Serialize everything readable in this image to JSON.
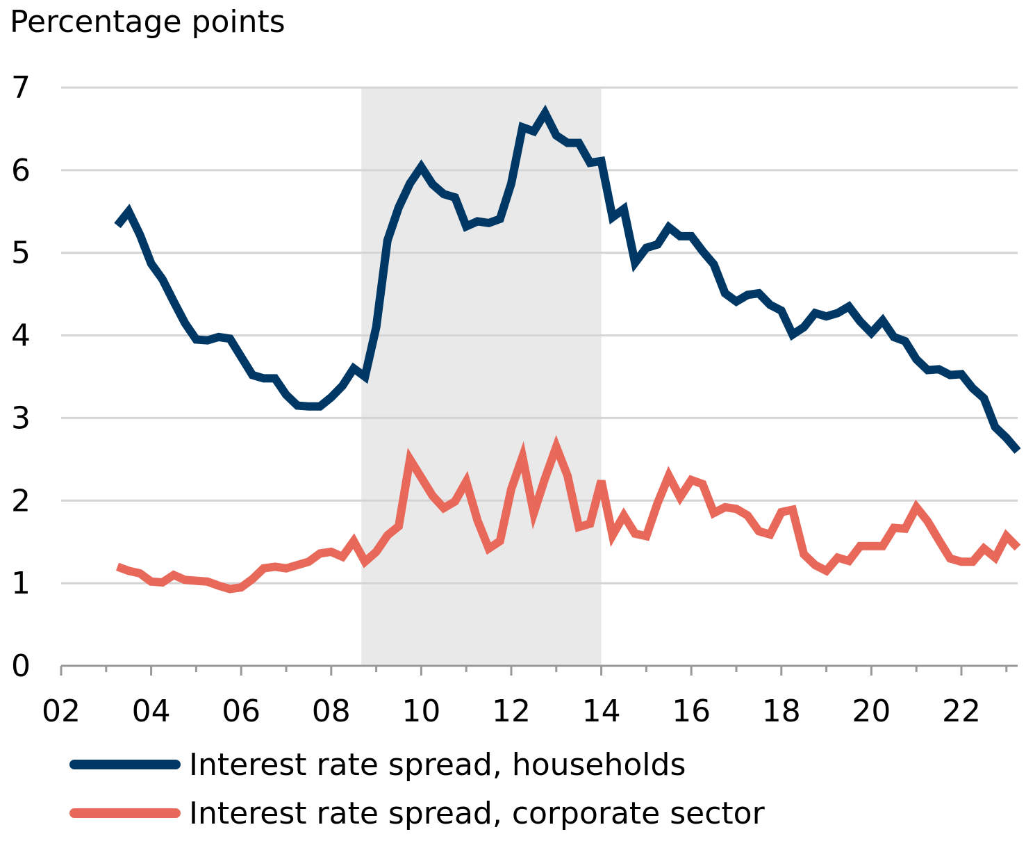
{
  "chart_data": {
    "type": "line",
    "ylabel": "Percentage points",
    "ylim": [
      0,
      7
    ],
    "yticks": [
      "0",
      "1",
      "2",
      "3",
      "4",
      "5",
      "6",
      "7"
    ],
    "xlim": [
      2002,
      2023.25
    ],
    "xticks": [
      {
        "v": 2002,
        "label": "02"
      },
      {
        "v": 2004,
        "label": "04"
      },
      {
        "v": 2006,
        "label": "06"
      },
      {
        "v": 2008,
        "label": "08"
      },
      {
        "v": 2010,
        "label": "10"
      },
      {
        "v": 2012,
        "label": "12"
      },
      {
        "v": 2014,
        "label": "14"
      },
      {
        "v": 2016,
        "label": "16"
      },
      {
        "v": 2018,
        "label": "18"
      },
      {
        "v": 2020,
        "label": "20"
      },
      {
        "v": 2022,
        "label": "22"
      }
    ],
    "shaded_region": [
      2008.67,
      2014.0
    ],
    "grid": true,
    "legend_position": "bottom",
    "series": [
      {
        "name": "Interest rate spread, households",
        "color": "#003865",
        "points": [
          [
            2003.25,
            5.33
          ],
          [
            2003.5,
            5.5
          ],
          [
            2003.75,
            5.22
          ],
          [
            2004.0,
            4.87
          ],
          [
            2004.25,
            4.68
          ],
          [
            2004.5,
            4.41
          ],
          [
            2004.75,
            4.15
          ],
          [
            2005.0,
            3.95
          ],
          [
            2005.25,
            3.94
          ],
          [
            2005.5,
            3.98
          ],
          [
            2005.75,
            3.96
          ],
          [
            2006.0,
            3.74
          ],
          [
            2006.25,
            3.52
          ],
          [
            2006.5,
            3.48
          ],
          [
            2006.75,
            3.48
          ],
          [
            2007.0,
            3.28
          ],
          [
            2007.25,
            3.15
          ],
          [
            2007.5,
            3.14
          ],
          [
            2007.75,
            3.14
          ],
          [
            2008.0,
            3.25
          ],
          [
            2008.25,
            3.39
          ],
          [
            2008.5,
            3.6
          ],
          [
            2008.75,
            3.5
          ],
          [
            2009.0,
            4.1
          ],
          [
            2009.25,
            5.15
          ],
          [
            2009.5,
            5.55
          ],
          [
            2009.75,
            5.84
          ],
          [
            2010.0,
            6.04
          ],
          [
            2010.25,
            5.83
          ],
          [
            2010.5,
            5.71
          ],
          [
            2010.75,
            5.67
          ],
          [
            2011.0,
            5.32
          ],
          [
            2011.25,
            5.38
          ],
          [
            2011.5,
            5.36
          ],
          [
            2011.75,
            5.41
          ],
          [
            2012.0,
            5.84
          ],
          [
            2012.25,
            6.52
          ],
          [
            2012.5,
            6.47
          ],
          [
            2012.75,
            6.69
          ],
          [
            2013.0,
            6.42
          ],
          [
            2013.25,
            6.33
          ],
          [
            2013.5,
            6.33
          ],
          [
            2013.75,
            6.09
          ],
          [
            2014.0,
            6.11
          ],
          [
            2014.25,
            5.43
          ],
          [
            2014.5,
            5.53
          ],
          [
            2014.75,
            4.88
          ],
          [
            2015.0,
            5.06
          ],
          [
            2015.25,
            5.1
          ],
          [
            2015.5,
            5.31
          ],
          [
            2015.75,
            5.2
          ],
          [
            2016.0,
            5.2
          ],
          [
            2016.25,
            5.02
          ],
          [
            2016.5,
            4.86
          ],
          [
            2016.75,
            4.51
          ],
          [
            2017.0,
            4.41
          ],
          [
            2017.25,
            4.49
          ],
          [
            2017.5,
            4.51
          ],
          [
            2017.75,
            4.37
          ],
          [
            2018.0,
            4.3
          ],
          [
            2018.25,
            4.01
          ],
          [
            2018.5,
            4.1
          ],
          [
            2018.75,
            4.27
          ],
          [
            2019.0,
            4.23
          ],
          [
            2019.25,
            4.27
          ],
          [
            2019.5,
            4.35
          ],
          [
            2019.75,
            4.17
          ],
          [
            2020.0,
            4.03
          ],
          [
            2020.25,
            4.18
          ],
          [
            2020.5,
            3.98
          ],
          [
            2020.75,
            3.93
          ],
          [
            2021.0,
            3.71
          ],
          [
            2021.25,
            3.58
          ],
          [
            2021.5,
            3.59
          ],
          [
            2021.75,
            3.52
          ],
          [
            2022.0,
            3.53
          ],
          [
            2022.25,
            3.36
          ],
          [
            2022.5,
            3.24
          ],
          [
            2022.75,
            2.89
          ],
          [
            2023.0,
            2.76
          ],
          [
            2023.25,
            2.6
          ]
        ]
      },
      {
        "name": "Interest rate spread, corporate sector",
        "color": "#E8685A",
        "points": [
          [
            2003.25,
            1.2
          ],
          [
            2003.5,
            1.15
          ],
          [
            2003.75,
            1.12
          ],
          [
            2004.0,
            1.02
          ],
          [
            2004.25,
            1.01
          ],
          [
            2004.5,
            1.1
          ],
          [
            2004.75,
            1.04
          ],
          [
            2005.0,
            1.03
          ],
          [
            2005.25,
            1.02
          ],
          [
            2005.5,
            0.97
          ],
          [
            2005.75,
            0.93
          ],
          [
            2006.0,
            0.95
          ],
          [
            2006.25,
            1.05
          ],
          [
            2006.5,
            1.18
          ],
          [
            2006.75,
            1.2
          ],
          [
            2007.0,
            1.18
          ],
          [
            2007.25,
            1.22
          ],
          [
            2007.5,
            1.26
          ],
          [
            2007.75,
            1.36
          ],
          [
            2008.0,
            1.38
          ],
          [
            2008.25,
            1.32
          ],
          [
            2008.5,
            1.51
          ],
          [
            2008.75,
            1.26
          ],
          [
            2009.0,
            1.38
          ],
          [
            2009.25,
            1.58
          ],
          [
            2009.5,
            1.69
          ],
          [
            2009.75,
            2.5
          ],
          [
            2010.0,
            2.28
          ],
          [
            2010.25,
            2.06
          ],
          [
            2010.5,
            1.91
          ],
          [
            2010.75,
            1.99
          ],
          [
            2011.0,
            2.23
          ],
          [
            2011.25,
            1.76
          ],
          [
            2011.5,
            1.42
          ],
          [
            2011.75,
            1.51
          ],
          [
            2012.0,
            2.14
          ],
          [
            2012.25,
            2.53
          ],
          [
            2012.5,
            1.85
          ],
          [
            2012.75,
            2.27
          ],
          [
            2013.0,
            2.65
          ],
          [
            2013.25,
            2.3
          ],
          [
            2013.5,
            1.68
          ],
          [
            2013.75,
            1.72
          ],
          [
            2014.0,
            2.24
          ],
          [
            2014.25,
            1.58
          ],
          [
            2014.5,
            1.82
          ],
          [
            2014.75,
            1.6
          ],
          [
            2015.0,
            1.57
          ],
          [
            2015.25,
            1.97
          ],
          [
            2015.5,
            2.3
          ],
          [
            2015.75,
            2.04
          ],
          [
            2016.0,
            2.25
          ],
          [
            2016.25,
            2.2
          ],
          [
            2016.5,
            1.85
          ],
          [
            2016.75,
            1.92
          ],
          [
            2017.0,
            1.9
          ],
          [
            2017.25,
            1.82
          ],
          [
            2017.5,
            1.63
          ],
          [
            2017.75,
            1.59
          ],
          [
            2018.0,
            1.86
          ],
          [
            2018.25,
            1.89
          ],
          [
            2018.5,
            1.35
          ],
          [
            2018.75,
            1.22
          ],
          [
            2019.0,
            1.15
          ],
          [
            2019.25,
            1.31
          ],
          [
            2019.5,
            1.27
          ],
          [
            2019.75,
            1.45
          ],
          [
            2020.0,
            1.45
          ],
          [
            2020.25,
            1.45
          ],
          [
            2020.5,
            1.67
          ],
          [
            2020.75,
            1.66
          ],
          [
            2021.0,
            1.92
          ],
          [
            2021.25,
            1.75
          ],
          [
            2021.5,
            1.52
          ],
          [
            2021.75,
            1.3
          ],
          [
            2022.0,
            1.26
          ],
          [
            2022.25,
            1.26
          ],
          [
            2022.5,
            1.42
          ],
          [
            2022.75,
            1.31
          ],
          [
            2023.0,
            1.57
          ],
          [
            2023.25,
            1.43
          ]
        ]
      }
    ]
  }
}
